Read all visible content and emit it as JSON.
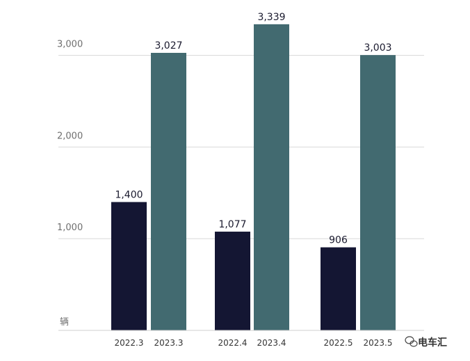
{
  "chart_data": {
    "type": "bar",
    "categories": [
      "2022.3",
      "2023.3",
      "2022.4",
      "2023.4",
      "2022.5",
      "2023.5"
    ],
    "values": [
      1400,
      3027,
      1077,
      3339,
      906,
      3003
    ],
    "data_labels": [
      "1,400",
      "3,027",
      "1,077",
      "3,339",
      "906",
      "3,003"
    ],
    "bar_colors": [
      "#141633",
      "#426a70",
      "#141633",
      "#426a70",
      "#141633",
      "#426a70"
    ],
    "yticks": [
      {
        "value": 1000,
        "label": "1,000"
      },
      {
        "value": 2000,
        "label": "2,000"
      },
      {
        "value": 3000,
        "label": "3,000"
      }
    ],
    "unit_label": "辆",
    "ylim": [
      0,
      3300
    ],
    "grid": true,
    "title": "",
    "xlabel": "",
    "ylabel": ""
  },
  "watermark": {
    "text": "电车汇",
    "icon": "wechat-icon"
  },
  "colors": {
    "dark_bar": "#141633",
    "teal_bar": "#426a70",
    "grid": "#d9d9d9"
  }
}
